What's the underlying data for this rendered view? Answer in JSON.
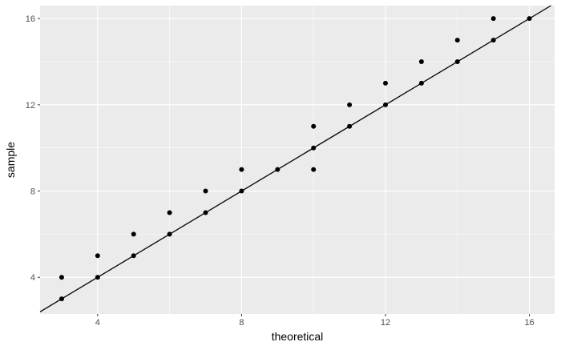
{
  "chart_data": {
    "type": "scatter",
    "title": "",
    "xlabel": "theoretical",
    "ylabel": "sample",
    "xlim": [
      2.4,
      16.7
    ],
    "ylim": [
      2.3,
      16.6
    ],
    "x_ticks": [
      4,
      8,
      12,
      16
    ],
    "y_ticks": [
      4,
      8,
      12,
      16
    ],
    "grid": true,
    "background": "#ebebeb",
    "grid_color": "#ffffff",
    "point_color": "#000000",
    "reference_line": {
      "intercept": 0,
      "slope": 1,
      "color": "#000000"
    },
    "points": [
      {
        "x": 3,
        "y": 3
      },
      {
        "x": 3,
        "y": 4
      },
      {
        "x": 4,
        "y": 4
      },
      {
        "x": 4,
        "y": 5
      },
      {
        "x": 5,
        "y": 5
      },
      {
        "x": 5,
        "y": 6
      },
      {
        "x": 6,
        "y": 6
      },
      {
        "x": 6,
        "y": 7
      },
      {
        "x": 7,
        "y": 7
      },
      {
        "x": 7,
        "y": 8
      },
      {
        "x": 8,
        "y": 8
      },
      {
        "x": 8,
        "y": 9
      },
      {
        "x": 9,
        "y": 9
      },
      {
        "x": 10,
        "y": 9
      },
      {
        "x": 10,
        "y": 10
      },
      {
        "x": 10,
        "y": 11
      },
      {
        "x": 11,
        "y": 11
      },
      {
        "x": 11,
        "y": 12
      },
      {
        "x": 12,
        "y": 12
      },
      {
        "x": 12,
        "y": 13
      },
      {
        "x": 13,
        "y": 13
      },
      {
        "x": 13,
        "y": 14
      },
      {
        "x": 14,
        "y": 14
      },
      {
        "x": 14,
        "y": 15
      },
      {
        "x": 15,
        "y": 15
      },
      {
        "x": 15,
        "y": 16
      },
      {
        "x": 16,
        "y": 16
      }
    ]
  }
}
